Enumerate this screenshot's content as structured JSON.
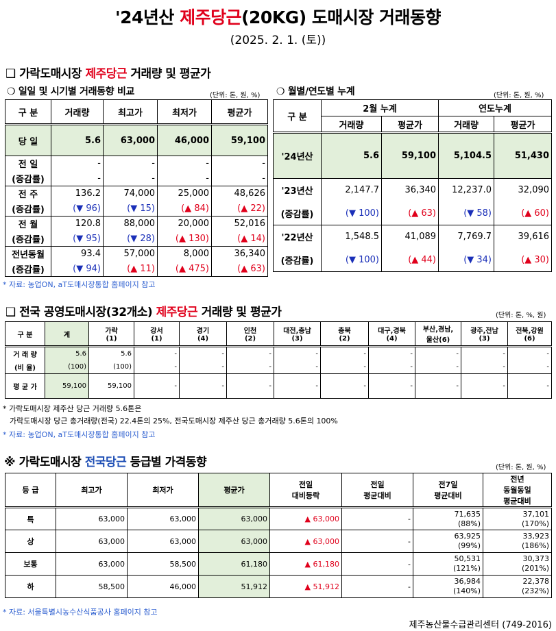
{
  "header": {
    "title_pre": "'24년산 ",
    "title_red": "제주당근",
    "title_post": "(20KG) 도매시장 거래동향",
    "date": "(2025. 2. 1. (토))"
  },
  "section1": {
    "marker": "❑",
    "title_pre": "가락도매시장 ",
    "title_red": "제주당근",
    "title_post": " 거래량 및 평균가"
  },
  "daily": {
    "marker": "❍",
    "title": "일일 및 시기별 거래동향 비교",
    "unit": "(단위: 톤, 원, %)",
    "headers": [
      "구  분",
      "거래량",
      "최고가",
      "최저가",
      "평균가"
    ],
    "today": {
      "label": "당  일",
      "values": [
        "5.6",
        "63,000",
        "46,000",
        "59,100"
      ]
    },
    "rows": [
      {
        "label": "전  일",
        "values": [
          "-",
          "-",
          "-",
          "-"
        ],
        "sublabel": "(증감률)",
        "changes": [
          "-",
          "-",
          "-",
          "-"
        ],
        "dirs": [
          "",
          "",
          "",
          ""
        ]
      },
      {
        "label": "전  주",
        "values": [
          "136.2",
          "74,000",
          "25,000",
          "48,626"
        ],
        "sublabel": "(증감률)",
        "changes": [
          "(▼ 96)",
          "(▼ 15)",
          "(▲ 84)",
          "(▲ 22)"
        ],
        "dirs": [
          "down",
          "down",
          "up",
          "up"
        ]
      },
      {
        "label": "전  월",
        "values": [
          "120.8",
          "88,000",
          "20,000",
          "52,016"
        ],
        "sublabel": "(증감률)",
        "changes": [
          "(▼ 95)",
          "(▼ 28)",
          "(▲ 130)",
          "(▲ 14)"
        ],
        "dirs": [
          "down",
          "down",
          "up",
          "up"
        ]
      },
      {
        "label": "전년동월",
        "values": [
          "93.4",
          "57,000",
          "8,000",
          "36,340"
        ],
        "sublabel": "(증감률)",
        "changes": [
          "(▼ 94)",
          "(▲ 11)",
          "(▲ 475)",
          "(▲ 63)"
        ],
        "dirs": [
          "down",
          "up",
          "up",
          "up"
        ]
      }
    ]
  },
  "monthly": {
    "marker": "❍",
    "title": "월별/연도별 누계",
    "unit": "(단위: 톤, 원, %)",
    "h_gubun": "구  분",
    "h_feb": "2월 누계",
    "h_year": "연도누계",
    "h_sub": [
      "거래량",
      "평균가",
      "거래량",
      "평균가"
    ],
    "y24": {
      "label": "'24년산",
      "values": [
        "5.6",
        "59,100",
        "5,104.5",
        "51,430"
      ]
    },
    "years": [
      {
        "label": "'23년산",
        "values": [
          "2,147.7",
          "36,340",
          "12,237.0",
          "32,090"
        ],
        "sublabel": "(증감률)",
        "changes": [
          "(▼ 100)",
          "(▲ 63)",
          "(▼ 58)",
          "(▲ 60)"
        ],
        "dirs": [
          "down",
          "up",
          "down",
          "up"
        ]
      },
      {
        "label": "'22년산",
        "values": [
          "1,548.5",
          "41,089",
          "7,769.7",
          "39,616"
        ],
        "sublabel": "(증감률)",
        "changes": [
          "(▼ 100)",
          "(▲ 44)",
          "(▼ 34)",
          "(▲ 30)"
        ],
        "dirs": [
          "down",
          "up",
          "down",
          "up"
        ]
      }
    ]
  },
  "note1": "* 자료: 농업ON, aT도매시장통합 홈페이지 참고",
  "section2": {
    "marker": "❑",
    "title_pre": "전국 공영도매시장(32개소) ",
    "title_red": "제주당근",
    "title_post": " 거래량 및 평균가",
    "unit": "(단위: 톤, %, 원)",
    "headers": [
      [
        "구  분",
        ""
      ],
      [
        "계",
        ""
      ],
      [
        "가락",
        "(1)"
      ],
      [
        "강서",
        "(1)"
      ],
      [
        "경기",
        "(4)"
      ],
      [
        "인천",
        "(2)"
      ],
      [
        "대전,충남",
        "(3)"
      ],
      [
        "충북",
        "(2)"
      ],
      [
        "대구,경북",
        "(4)"
      ],
      [
        "부산,경남,",
        "울산(6)"
      ],
      [
        "광주,전남",
        "(3)"
      ],
      [
        "전북,강원",
        "(6)"
      ]
    ],
    "rows": [
      {
        "label": "거 래 량",
        "values": [
          "5.6",
          "5.6",
          "-",
          "-",
          "-",
          "-",
          "-",
          "-",
          "-",
          "-",
          "-"
        ]
      },
      {
        "label": "(비 율)",
        "values": [
          "(100)",
          "(100)",
          "-",
          "-",
          "-",
          "-",
          "-",
          "-",
          "-",
          "-",
          "-"
        ]
      },
      {
        "label": "평 균 가",
        "values": [
          "59,100",
          "59,100",
          "-",
          "-",
          "-",
          "-",
          "-",
          "-",
          "-",
          "-",
          "-"
        ]
      }
    ]
  },
  "notes2": [
    "* 가락도매시장 제주산 당근 거래량 5.6톤은",
    "가락도매시장 당근 총거래량(전국) 22.4톤의 25%, 전국도매시장 제주산 당근 총거래량 5.6톤의 100%",
    "* 자료: 농업ON, aT도매시장통합 홈페이지 참고"
  ],
  "section3": {
    "marker": "※",
    "title_pre": "가락도매시장 ",
    "title_blue": "전국당근",
    "title_post": " 등급별 가격동향",
    "unit": "(단위: 톤, 원, %)",
    "headers": [
      [
        "등  급",
        ""
      ],
      [
        "최고가",
        ""
      ],
      [
        "최저가",
        ""
      ],
      [
        "평균가",
        ""
      ],
      [
        "전일",
        "대비등락"
      ],
      [
        "전일",
        "평균대비"
      ],
      [
        "전7일",
        "평균대비"
      ],
      [
        "전년",
        "동월동일",
        "평균대비"
      ]
    ],
    "rows": [
      {
        "grade": "특",
        "max": "63,000",
        "min": "63,000",
        "avg": "63,000",
        "diff": "▲ 63,000",
        "prev": "-",
        "d7": "71,635",
        "d7p": "(88%)",
        "py": "37,101",
        "pyp": "(170%)"
      },
      {
        "grade": "상",
        "max": "63,000",
        "min": "63,000",
        "avg": "63,000",
        "diff": "▲ 63,000",
        "prev": "-",
        "d7": "63,925",
        "d7p": "(99%)",
        "py": "33,923",
        "pyp": "(186%)"
      },
      {
        "grade": "보통",
        "max": "63,000",
        "min": "58,500",
        "avg": "61,180",
        "diff": "▲ 61,180",
        "prev": "-",
        "d7": "50,531",
        "d7p": "(121%)",
        "py": "30,373",
        "pyp": "(201%)"
      },
      {
        "grade": "하",
        "max": "58,500",
        "min": "46,000",
        "avg": "51,912",
        "diff": "▲ 51,912",
        "prev": "-",
        "d7": "36,984",
        "d7p": "(140%)",
        "py": "22,378",
        "pyp": "(232%)"
      }
    ]
  },
  "note3": "* 자료: 서울특별시농수산식품공사 홈페이지 참고",
  "footer": "제주농산물수급관리센터 (749-2016)"
}
